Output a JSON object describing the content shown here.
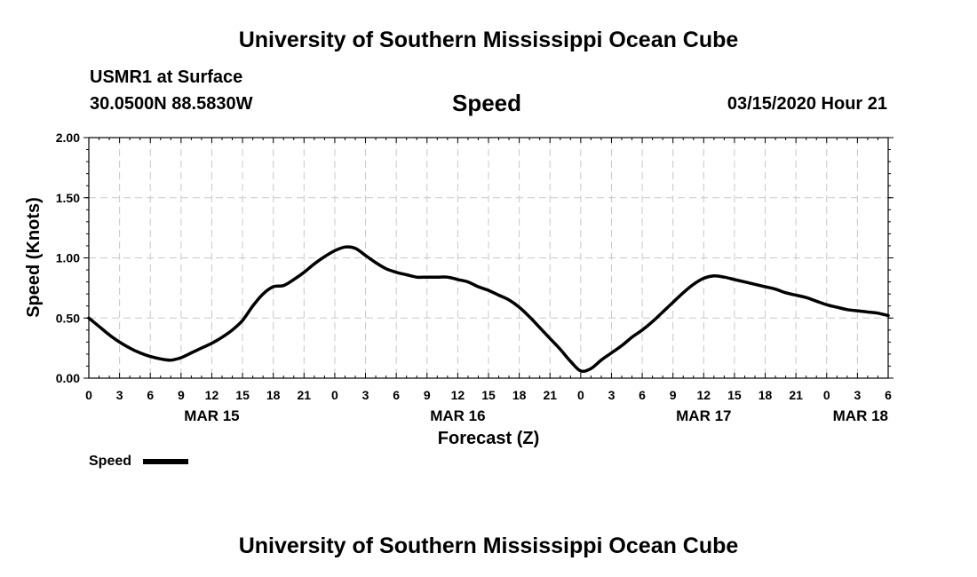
{
  "header": {
    "title": "University of Southern Mississippi Ocean Cube",
    "station": "USMR1 at Surface",
    "coords": "30.0500N 88.5830W",
    "variable": "Speed",
    "datetime": "03/15/2020 Hour 21"
  },
  "footer": {
    "title": "University of Southern Mississippi Ocean Cube"
  },
  "chart_data": {
    "type": "line",
    "title": "Speed",
    "xlabel": "Forecast (Z)",
    "ylabel": "Speed (Knots)",
    "ylim": [
      0,
      2
    ],
    "yticks": [
      0,
      0.5,
      1,
      1.5,
      2
    ],
    "ytick_labels": [
      "0.00",
      "0.50",
      "1.00",
      "1.50",
      "2.00"
    ],
    "xlim": [
      0,
      78
    ],
    "xtick_labels": [
      "0",
      "3",
      "6",
      "9",
      "12",
      "15",
      "18",
      "21",
      "0",
      "3",
      "6",
      "9",
      "12",
      "15",
      "18",
      "21",
      "0",
      "3",
      "6",
      "9",
      "12",
      "15",
      "18",
      "21",
      "0",
      "3",
      "6"
    ],
    "date_labels": [
      {
        "label": "MAR 15",
        "hour": 12
      },
      {
        "label": "MAR 16",
        "hour": 36
      },
      {
        "label": "MAR 17",
        "hour": 60
      },
      {
        "label": "MAR 18",
        "hour": 78
      }
    ],
    "grid": true,
    "legend": {
      "label": "Speed",
      "placement": "bottom-left"
    },
    "series": [
      {
        "name": "Speed",
        "x": [
          0,
          1,
          2,
          3,
          4,
          5,
          6,
          7,
          8,
          9,
          10,
          11,
          12,
          13,
          14,
          15,
          16,
          17,
          18,
          19,
          20,
          21,
          22,
          23,
          24,
          25,
          26,
          27,
          28,
          29,
          30,
          31,
          32,
          33,
          34,
          35,
          36,
          37,
          38,
          39,
          40,
          41,
          42,
          43,
          44,
          45,
          46,
          47,
          48,
          49,
          50,
          51,
          52,
          53,
          54,
          55,
          56,
          57,
          58,
          59,
          60,
          61,
          62,
          63,
          64,
          65,
          66,
          67,
          68,
          69,
          70,
          71,
          72,
          73,
          74,
          75,
          76,
          77,
          78
        ],
        "y": [
          0.5,
          0.43,
          0.36,
          0.3,
          0.25,
          0.21,
          0.18,
          0.16,
          0.15,
          0.17,
          0.21,
          0.25,
          0.29,
          0.34,
          0.4,
          0.48,
          0.6,
          0.7,
          0.76,
          0.77,
          0.82,
          0.88,
          0.95,
          1.01,
          1.06,
          1.09,
          1.08,
          1.02,
          0.96,
          0.91,
          0.88,
          0.86,
          0.84,
          0.84,
          0.84,
          0.84,
          0.82,
          0.8,
          0.76,
          0.73,
          0.69,
          0.65,
          0.59,
          0.51,
          0.42,
          0.33,
          0.24,
          0.14,
          0.06,
          0.08,
          0.15,
          0.21,
          0.27,
          0.34,
          0.4,
          0.47,
          0.55,
          0.63,
          0.71,
          0.78,
          0.83,
          0.85,
          0.84,
          0.82,
          0.8,
          0.78,
          0.76,
          0.74,
          0.71,
          0.69,
          0.67,
          0.64,
          0.61,
          0.59,
          0.57,
          0.56,
          0.55,
          0.54,
          0.52
        ]
      }
    ]
  }
}
